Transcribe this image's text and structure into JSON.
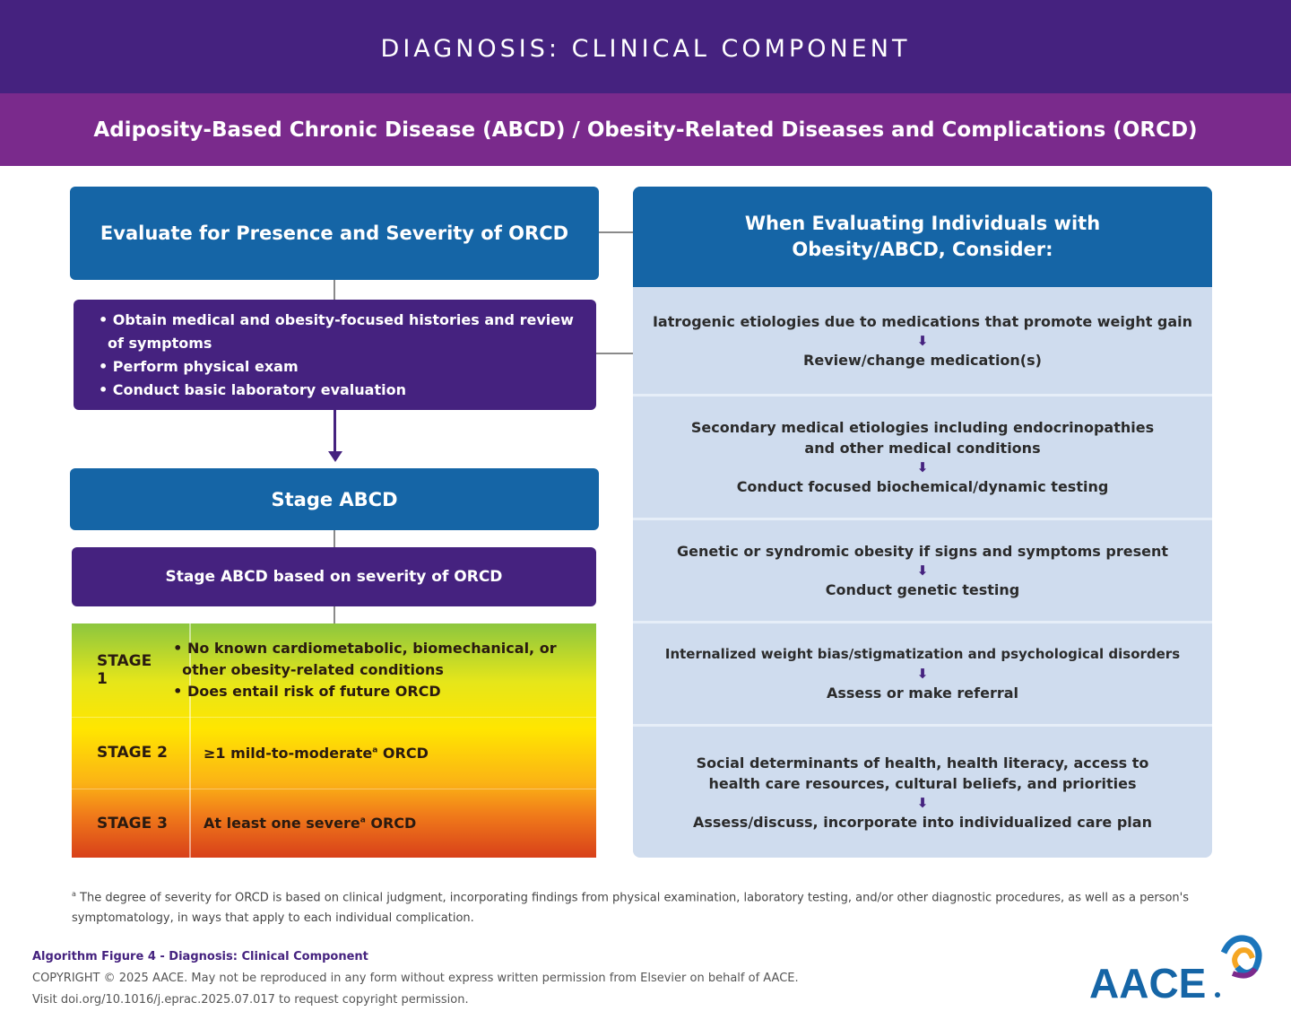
{
  "header": {
    "title": "DIAGNOSIS: CLINICAL COMPONENT",
    "subtitle": "Adiposity-Based Chronic Disease (ABCD) / Obesity-Related Diseases and Complications (ORCD)"
  },
  "left": {
    "evaluate_title": "Evaluate for Presence and Severity of ORCD",
    "history_items": [
      "Obtain medical and obesity-focused histories and review of symptoms",
      "Perform physical exam",
      "Conduct basic laboratory evaluation"
    ],
    "stage_title": "Stage ABCD",
    "stage_subtitle": "Stage ABCD based on severity of ORCD",
    "stages": [
      {
        "label": "STAGE 1",
        "items": [
          "No known cardiometabolic, biomechanical, or other obesity-related conditions",
          "Does entail risk of future ORCD"
        ]
      },
      {
        "label": "STAGE 2",
        "text": "≥1 mild-to-moderate",
        "sup": "a",
        "text_end": " ORCD"
      },
      {
        "label": "STAGE 3",
        "text": "At least one severe",
        "sup": "a",
        "text_end": " ORCD"
      }
    ]
  },
  "right": {
    "title": "When Evaluating Individuals with Obesity/ABCD, Consider:",
    "considerations": [
      {
        "condition": "Iatrogenic etiologies due to medications that promote weight gain",
        "action": "Review/change medication(s)"
      },
      {
        "condition": "Secondary medical etiologies including endocrinopathies and other medical conditions",
        "action": "Conduct focused biochemical/dynamic testing"
      },
      {
        "condition": "Genetic or syndromic obesity if signs and symptoms present",
        "action": "Conduct genetic testing"
      },
      {
        "condition": "Internalized weight bias/stigmatization and psychological disorders",
        "action": "Assess or make referral"
      },
      {
        "condition": "Social determinants of health, health literacy, access to health care resources, cultural beliefs, and priorities",
        "action": "Assess/discuss, incorporate into individualized care plan"
      }
    ],
    "arrow_icon": "arrow-down"
  },
  "footnote": {
    "marker": "a",
    "text": "The degree of severity for ORCD is based on clinical judgment, incorporating findings from physical examination, laboratory testing, and/or other diagnostic procedures, as well as a person's symptomatology, in ways that apply to each individual complication."
  },
  "footer": {
    "figure_title": "Algorithm Figure 4 - Diagnosis: Clinical Component",
    "copyright": "COPYRIGHT © 2025 AACE. May not be reproduced in any form without express written permission from Elsevier on behalf of AACE.",
    "permission": "Visit doi.org/10.1016/j.eprac.2025.07.017 to request copyright permission.",
    "logo": "AACE."
  },
  "colors": {
    "header": "#45227f",
    "subheader": "#7a2a8c",
    "blue": "#1565a6",
    "panel": "#cfdcee"
  }
}
